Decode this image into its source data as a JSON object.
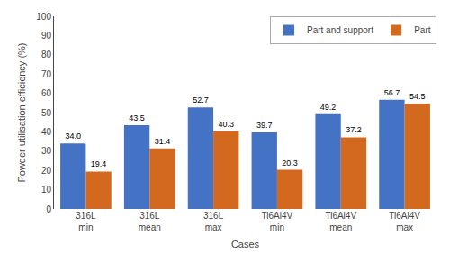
{
  "chart_data": {
    "type": "bar",
    "categories": [
      "316L\nmin",
      "316L\nmean",
      "316L\nmax",
      "Ti6Al4V\nmin",
      "Ti6Al4V\nmean",
      "Ti6Al4V\nmax"
    ],
    "series": [
      {
        "name": "Part and support",
        "color": "#4472C4",
        "values": [
          34.0,
          43.5,
          52.7,
          39.7,
          49.2,
          56.7
        ],
        "value_labels": [
          "34.0",
          "43.5",
          "52.7",
          "39.7",
          "49.2",
          "56.7"
        ]
      },
      {
        "name": "Part",
        "color": "#D2691E",
        "values": [
          19.4,
          31.4,
          40.3,
          20.3,
          37.2,
          54.5
        ],
        "value_labels": [
          "19.4",
          "31.4",
          "40.3",
          "20.3",
          "37.2",
          "54.5"
        ]
      }
    ],
    "xlabel": "Cases",
    "ylabel": "Powder utilisation efficiency (%)",
    "ylim": [
      0,
      100
    ],
    "yticks": [
      0,
      10,
      20,
      30,
      40,
      50,
      60,
      70,
      80,
      90,
      100
    ],
    "data_labels": true,
    "legend": "upper right",
    "grid": false
  }
}
